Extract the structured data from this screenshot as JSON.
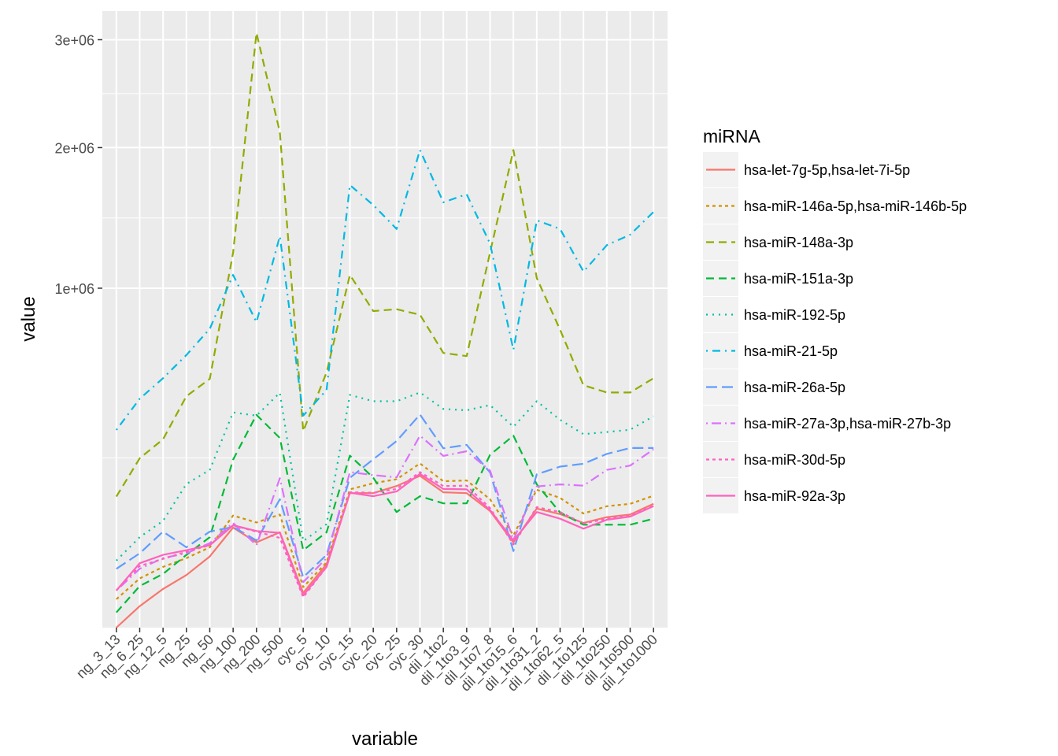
{
  "chart_data": {
    "type": "line",
    "xlabel": "variable",
    "ylabel": "value",
    "y_scale": "sqrt",
    "ylim": [
      0,
      3300000
    ],
    "y_ticks": [
      {
        "value": 1000000,
        "label": "1e+06"
      },
      {
        "value": 2000000,
        "label": "2e+06"
      },
      {
        "value": 3000000,
        "label": "3e+06"
      }
    ],
    "categories": [
      "ng_3_13",
      "ng_6_25",
      "ng_12_5",
      "ng_25",
      "ng_50",
      "ng_100",
      "ng_200",
      "ng_500",
      "cyc_5",
      "cyc_10",
      "cyc_15",
      "cyc_20",
      "cyc_25",
      "cyc_30",
      "dil_1to2",
      "dil_1to3_9",
      "dil_1to7_8",
      "dil_1to15_6",
      "dil_1to31_2",
      "dil_1to62_5",
      "dil_1to125",
      "dil_1to250",
      "dil_1to500",
      "dil_1to1000"
    ],
    "legend": {
      "title": "miRNA",
      "position": "right"
    },
    "grid": true,
    "series": [
      {
        "name": "hsa-let-7g-5p,hsa-let-7i-5p",
        "color": "#F8766D",
        "dash": "solid",
        "values": [
          0,
          4000,
          13000,
          24000,
          44000,
          87000,
          63000,
          79000,
          10500,
          35000,
          157000,
          157000,
          174000,
          200000,
          159000,
          157000,
          118000,
          63000,
          123000,
          112000,
          95000,
          106000,
          111000,
          133000
        ]
      },
      {
        "name": "hsa-miR-146a-5p,hsa-miR-146b-5p",
        "color": "#D39200",
        "dash": "short",
        "values": [
          7000,
          21000,
          32000,
          42000,
          56000,
          109000,
          96000,
          111000,
          14300,
          37000,
          166000,
          181000,
          191000,
          234000,
          186000,
          188000,
          143000,
          74000,
          165000,
          146000,
          113000,
          128000,
          133000,
          151000
        ]
      },
      {
        "name": "hsa-miR-148a-3p",
        "color": "#93AA00",
        "dash": "long",
        "values": [
          149000,
          249000,
          308000,
          465000,
          537000,
          1220000,
          3070000,
          2130000,
          335000,
          565000,
          1080000,
          870000,
          880000,
          850000,
          655000,
          640000,
          1220000,
          1980000,
          1060000,
          770000,
          510000,
          480000,
          480000,
          540000
        ]
      },
      {
        "name": "hsa-miR-151a-3p",
        "color": "#00BA38",
        "dash": "long",
        "values": [
          2000,
          15000,
          25000,
          46000,
          71000,
          245000,
          393000,
          312000,
          52000,
          79000,
          257000,
          195000,
          116000,
          150000,
          134000,
          134000,
          259000,
          320000,
          178000,
          115000,
          92000,
          92000,
          92000,
          103000
        ]
      },
      {
        "name": "hsa-miR-192-5p",
        "color": "#00C19F",
        "dash": "dotted",
        "values": [
          39000,
          71000,
          99000,
          179000,
          216000,
          402000,
          390000,
          479000,
          65000,
          93000,
          470000,
          445000,
          445000,
          480000,
          415000,
          410000,
          430000,
          350000,
          445000,
          375000,
          325000,
          332000,
          340000,
          388000
        ]
      },
      {
        "name": "hsa-miR-21-5p",
        "color": "#00B9E3",
        "dash": "dotdash",
        "values": [
          339000,
          455000,
          540000,
          645000,
          775000,
          1080000,
          810000,
          1330000,
          390000,
          490000,
          1700000,
          1550000,
          1380000,
          1980000,
          1570000,
          1630000,
          1280000,
          670000,
          1440000,
          1380000,
          1100000,
          1270000,
          1340000,
          1500000
        ]
      },
      {
        "name": "hsa-miR-26a-5p",
        "color": "#619CFF",
        "dash": "longish",
        "values": [
          30000,
          48000,
          80000,
          56000,
          80000,
          88000,
          66000,
          143000,
          22000,
          46000,
          195000,
          246000,
          302000,
          394000,
          279000,
          290000,
          209000,
          51000,
          204000,
          225000,
          233000,
          262000,
          280000,
          280000
        ]
      },
      {
        "name": "hsa-miR-27a-3p,hsa-miR-27b-3p",
        "color": "#DB72FB",
        "dash": "dotdashlong",
        "values": [
          12000,
          30000,
          42000,
          48000,
          62000,
          95000,
          59000,
          194000,
          18000,
          42000,
          210000,
          202000,
          196000,
          320000,
          256000,
          270000,
          214000,
          67000,
          173000,
          178000,
          175000,
          216000,
          228000,
          276000
        ]
      },
      {
        "name": "hsa-miR-30d-5p",
        "color": "#FF61C3",
        "dash": "short",
        "values": [
          12000,
          33000,
          41000,
          50000,
          59000,
          91000,
          80000,
          70000,
          8000,
          32000,
          159000,
          158000,
          167000,
          210000,
          174000,
          175000,
          124000,
          60000,
          126000,
          116000,
          94000,
          103000,
          109000,
          129000
        ]
      },
      {
        "name": "hsa-miR-92a-3p",
        "color": "#FF62BC",
        "dash": "solid",
        "values": [
          12000,
          36000,
          46000,
          52000,
          59000,
          91000,
          81000,
          78000,
          9000,
          32000,
          158000,
          150000,
          161000,
          205000,
          167000,
          166000,
          120000,
          66000,
          116000,
          103000,
          85000,
          101000,
          107000,
          128000
        ]
      }
    ]
  }
}
